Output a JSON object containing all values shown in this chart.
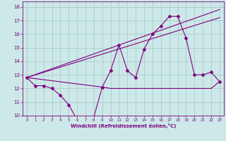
{
  "bg_color": "#cce8e8",
  "line_color": "#800080",
  "grid_color": "#aacccc",
  "xlabel": "Windchill (Refroidissement éolien,°C)",
  "xlabel_color": "#800080",
  "tick_color": "#800080",
  "xlim": [
    -0.5,
    23.5
  ],
  "ylim": [
    10,
    18.4
  ],
  "yticks": [
    10,
    11,
    12,
    13,
    14,
    15,
    16,
    17,
    18
  ],
  "xticks": [
    0,
    1,
    2,
    3,
    4,
    5,
    6,
    7,
    8,
    9,
    10,
    11,
    12,
    13,
    14,
    15,
    16,
    17,
    18,
    19,
    20,
    21,
    22,
    23
  ],
  "series1_x": [
    0,
    1,
    2,
    3,
    4,
    5,
    6,
    7,
    8,
    9,
    10,
    11,
    12,
    13,
    14,
    15,
    16,
    17,
    18,
    19,
    20,
    21,
    22,
    23
  ],
  "series1_y": [
    12.8,
    12.2,
    12.2,
    12.0,
    11.5,
    10.8,
    9.7,
    9.7,
    9.9,
    12.1,
    13.3,
    15.2,
    13.3,
    12.8,
    14.9,
    16.0,
    16.6,
    17.3,
    17.3,
    15.7,
    13.0,
    13.0,
    13.2,
    12.5
  ],
  "series2_x": [
    0,
    23
  ],
  "series2_y": [
    12.8,
    17.8
  ],
  "series3_x": [
    0,
    23
  ],
  "series3_y": [
    12.8,
    17.2
  ],
  "series4_x": [
    0,
    9,
    10,
    11,
    12,
    13,
    14,
    15,
    16,
    17,
    18,
    19,
    20,
    21,
    22,
    23
  ],
  "series4_y": [
    12.8,
    12.1,
    12.0,
    12.0,
    12.0,
    12.0,
    12.0,
    12.0,
    12.0,
    12.0,
    12.0,
    12.0,
    12.0,
    12.0,
    12.0,
    12.5
  ]
}
